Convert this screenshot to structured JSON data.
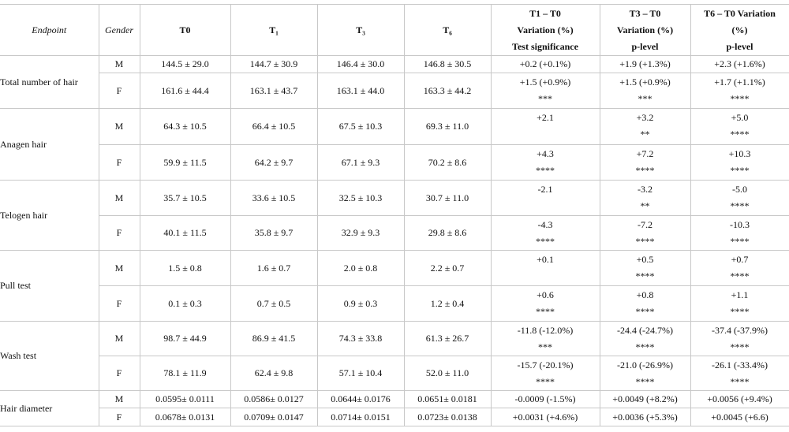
{
  "table": {
    "header": [
      [
        "Endpoint"
      ],
      [
        "Gender"
      ],
      [
        "T0"
      ],
      [
        "T₁"
      ],
      [
        "T₃"
      ],
      [
        "T₆"
      ],
      [
        "T1 – T0",
        "Variation (%)",
        "Test significance"
      ],
      [
        "T3 – T0",
        "Variation (%)",
        "p-level"
      ],
      [
        "T6 – T0 Variation",
        "(%)",
        "p-level"
      ]
    ],
    "groups": [
      {
        "endpoint": "Total number of hair",
        "rows": [
          {
            "gender": "M",
            "means": [
              "144.5 ± 29.0",
              "144.7 ± 30.9",
              "146.4 ± 30.0",
              "146.8 ± 30.5"
            ],
            "variations": [
              [
                "+0.2 (+0.1%)"
              ],
              [
                "+1.9 (+1.3%)"
              ],
              [
                "+2.3 (+1.6%)"
              ]
            ]
          },
          {
            "gender": "F",
            "means": [
              "161.6 ± 44.4",
              "163.1 ± 43.7",
              "163.1 ± 44.0",
              "163.3 ± 44.2"
            ],
            "variations": [
              [
                "+1.5 (+0.9%)",
                "***"
              ],
              [
                "+1.5 (+0.9%)",
                "***"
              ],
              [
                "+1.7 (+1.1%)",
                "****"
              ]
            ]
          }
        ]
      },
      {
        "endpoint": "Anagen hair",
        "rows": [
          {
            "gender": "M",
            "means": [
              "64.3 ± 10.5",
              "66.4 ± 10.5",
              "67.5 ± 10.3",
              "69.3 ± 11.0"
            ],
            "variations": [
              [
                "+2.1"
              ],
              [
                "+3.2",
                "**"
              ],
              [
                "+5.0",
                "****"
              ]
            ]
          },
          {
            "gender": "F",
            "means": [
              "59.9 ± 11.5",
              "64.2 ± 9.7",
              "67.1 ± 9.3",
              "70.2 ± 8.6"
            ],
            "variations": [
              [
                "+4.3",
                "****"
              ],
              [
                "+7.2",
                "****"
              ],
              [
                "+10.3",
                "****"
              ]
            ]
          }
        ]
      },
      {
        "endpoint": "Telogen hair",
        "rows": [
          {
            "gender": "M",
            "means": [
              "35.7 ± 10.5",
              "33.6 ± 10.5",
              "32.5 ± 10.3",
              "30.7 ± 11.0"
            ],
            "variations": [
              [
                "-2.1"
              ],
              [
                "-3.2",
                "**"
              ],
              [
                "-5.0",
                "****"
              ]
            ]
          },
          {
            "gender": "F",
            "means": [
              "40.1 ± 11.5",
              "35.8 ± 9.7",
              "32.9 ± 9.3",
              "29.8 ± 8.6"
            ],
            "variations": [
              [
                "-4.3",
                "****"
              ],
              [
                "-7.2",
                "****"
              ],
              [
                "-10.3",
                "****"
              ]
            ]
          }
        ]
      },
      {
        "endpoint": "Pull test",
        "rows": [
          {
            "gender": "M",
            "means": [
              "1.5 ± 0.8",
              "1.6 ± 0.7",
              "2.0 ± 0.8",
              "2.2 ± 0.7"
            ],
            "variations": [
              [
                "+0.1"
              ],
              [
                "+0.5",
                "****"
              ],
              [
                "+0.7",
                "****"
              ]
            ]
          },
          {
            "gender": "F",
            "means": [
              "0.1 ± 0.3",
              "0.7 ± 0.5",
              "0.9 ± 0.3",
              "1.2 ± 0.4"
            ],
            "variations": [
              [
                "+0.6",
                "****"
              ],
              [
                "+0.8",
                "****"
              ],
              [
                "+1.1",
                "****"
              ]
            ]
          }
        ]
      },
      {
        "endpoint": "Wash test",
        "rows": [
          {
            "gender": "M",
            "means": [
              "98.7 ± 44.9",
              "86.9 ± 41.5",
              "74.3 ± 33.8",
              "61.3 ± 26.7"
            ],
            "variations": [
              [
                "-11.8 (-12.0%)",
                "***"
              ],
              [
                "-24.4 (-24.7%)",
                "****"
              ],
              [
                "-37.4 (-37.9%)",
                "****"
              ]
            ]
          },
          {
            "gender": "F",
            "means": [
              "78.1 ± 11.9",
              "62.4 ± 9.8",
              "57.1 ± 10.4",
              "52.0 ± 11.0"
            ],
            "variations": [
              [
                "-15.7 (-20.1%)",
                "****"
              ],
              [
                "-21.0 (-26.9%)",
                "****"
              ],
              [
                "-26.1 (-33.4%)",
                "****"
              ]
            ]
          }
        ]
      },
      {
        "endpoint": "Hair diameter",
        "rows": [
          {
            "gender": "M",
            "means": [
              "0.0595± 0.0111",
              "0.0586± 0.0127",
              "0.0644± 0.0176",
              "0.0651± 0.0181"
            ],
            "variations": [
              [
                "-0.0009 (-1.5%)"
              ],
              [
                "+0.0049 (+8.2%)"
              ],
              [
                "+0.0056 (+9.4%)"
              ]
            ]
          },
          {
            "gender": "F",
            "means": [
              "0.0678± 0.0131",
              "0.0709± 0.0147",
              "0.0714± 0.0151",
              "0.0723± 0.0138"
            ],
            "variations": [
              [
                "+0.0031 (+4.6%)"
              ],
              [
                "+0.0036 (+5.3%)"
              ],
              [
                "+0.0045 (+6.6)"
              ]
            ]
          }
        ]
      }
    ]
  }
}
